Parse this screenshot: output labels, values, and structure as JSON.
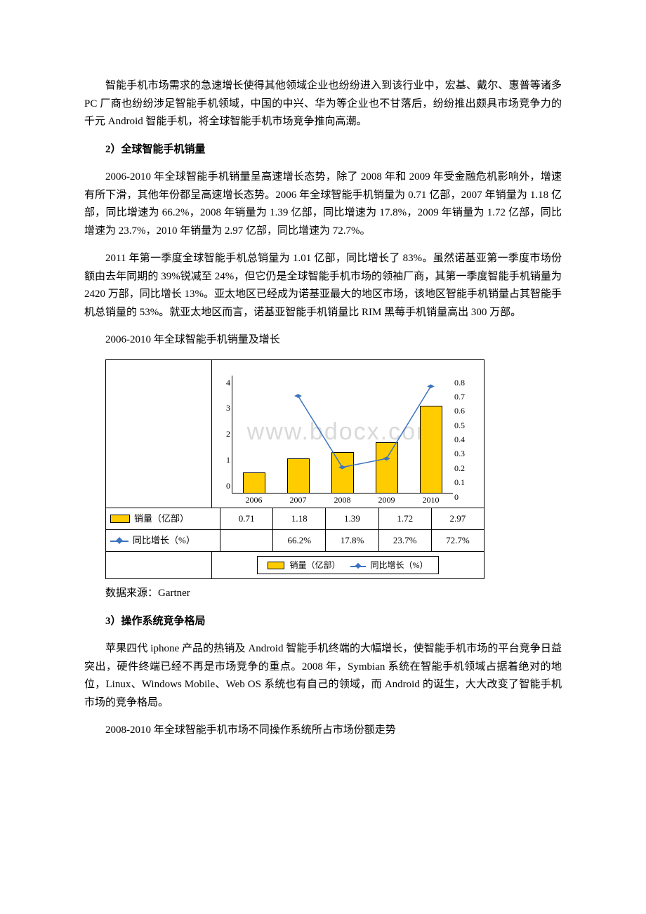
{
  "paragraphs": {
    "p1": "智能手机市场需求的急速增长使得其他领域企业也纷纷进入到该行业中，宏基、戴尔、惠普等诸多 PC 厂商也纷纷涉足智能手机领域，中国的中兴、华为等企业也不甘落后，纷纷推出颇具市场竞争力的千元 Android 智能手机，将全球智能手机市场竞争推向高潮。",
    "h2": "2）全球智能手机销量",
    "p2": "2006-2010 年全球智能手机销量呈高速增长态势，除了 2008 年和 2009 年受金融危机影响外，增速有所下滑，其他年份都呈高速增长态势。2006 年全球智能手机销量为 0.71 亿部，2007 年销量为 1.18 亿部，同比增速为 66.2%，2008 年销量为 1.39 亿部，同比增速为 17.8%，2009 年销量为 1.72 亿部，同比增速为 23.7%，2010 年销量为 2.97 亿部，同比增速为 72.7%。",
    "p3": "2011 年第一季度全球智能手机总销量为 1.01 亿部，同比增长了 83%。虽然诺基亚第一季度市场份额由去年同期的 39%锐减至 24%，但它仍是全球智能手机市场的领袖厂商，其第一季度智能手机销量为 2420 万部，同比增长 13%。亚太地区已经成为诺基亚最大的地区市场，该地区智能手机销量占其智能手机总销量的 53%。就亚太地区而言，诺基亚智能手机销量比 RIM 黑莓手机销量高出 300 万部。",
    "chart_caption": "2006-2010 年全球智能手机销量及增长",
    "source": "数据来源：Gartner",
    "h3": "3）操作系统竞争格局",
    "p4": "苹果四代 iphone 产品的热销及 Android 智能手机终端的大幅增长，使智能手机市场的平台竞争日益突出，硬件终端已经不再是市场竞争的重点。2008 年，Symbian 系统在智能手机领域占据着绝对的地位，Linux、Windows Mobile、Web OS 系统也有自己的领域，而 Android 的诞生，大大改变了智能手机市场的竞争格局。",
    "p5": "2008-2010 年全球智能手机市场不同操作系统所占市场份额走势"
  },
  "chart": {
    "type": "bar+line",
    "watermark": "www.bdocx.com",
    "categories": [
      "2006",
      "2007",
      "2008",
      "2009",
      "2010"
    ],
    "bar_series": {
      "label": "销量（亿部）",
      "values": [
        0.71,
        1.18,
        1.39,
        1.72,
        2.97
      ],
      "display": [
        "0.71",
        "1.18",
        "1.39",
        "1.72",
        "2.97"
      ],
      "color": "#ffcc00",
      "border_color": "#000000"
    },
    "line_series": {
      "label": "同比增长（%）",
      "values": [
        null,
        66.2,
        17.8,
        23.7,
        72.7
      ],
      "display": [
        "",
        "66.2%",
        "17.8%",
        "23.7%",
        "72.7%"
      ],
      "color": "#3b74c1",
      "marker": "diamond"
    },
    "left_axis": {
      "min": 0,
      "max": 4,
      "ticks": [
        "4",
        "3",
        "2",
        "1",
        "0"
      ]
    },
    "right_axis": {
      "min": 0,
      "max": 0.8,
      "ticks": [
        "0.8",
        "0.7",
        "0.6",
        "0.5",
        "0.4",
        "0.3",
        "0.2",
        "0.1",
        "0"
      ]
    },
    "legend": {
      "item1": "销量（亿部）",
      "item2": "同比增长（%）"
    }
  }
}
